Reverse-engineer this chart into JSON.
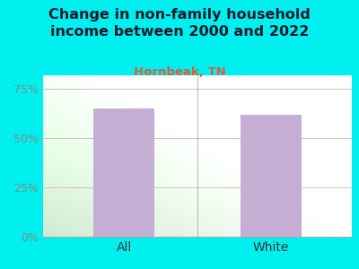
{
  "title": "Change in non-family household\nincome between 2000 and 2022",
  "subtitle": "Hornbeak, TN",
  "categories": [
    "All",
    "White"
  ],
  "values": [
    65.0,
    62.0
  ],
  "bar_color": "#c5aed4",
  "title_fontsize": 11.5,
  "subtitle_fontsize": 9.5,
  "subtitle_color": "#d45f3c",
  "title_color": "#1a1a2e",
  "outer_bg": "#00f0f0",
  "tick_color": "#888888",
  "tick_fontsize": 9,
  "ylim": [
    0,
    82
  ],
  "yticks": [
    0,
    25,
    50,
    75
  ],
  "ytick_labels": [
    "0%",
    "25%",
    "50%",
    "75%"
  ],
  "grid_color": "#e0b8c0",
  "xlabel_fontsize": 10,
  "xlabel_color": "#333333"
}
